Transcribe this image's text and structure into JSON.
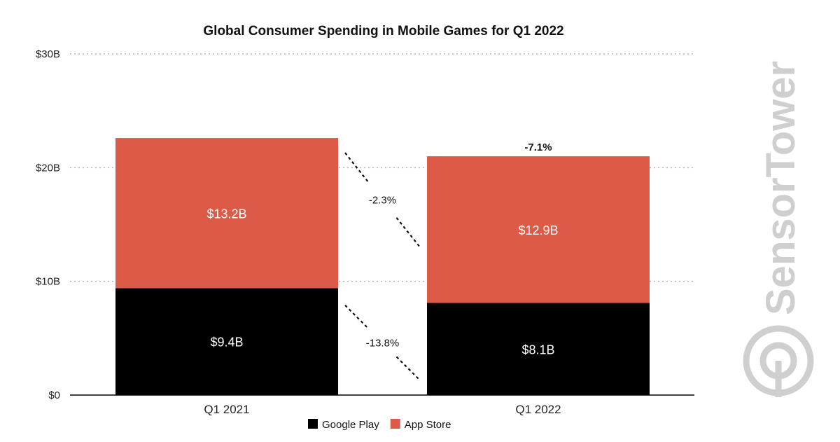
{
  "chart_data": {
    "type": "bar",
    "stacked": true,
    "title": "Global Consumer Spending in Mobile Games for Q1 2022",
    "categories": [
      "Q1 2021",
      "Q1 2022"
    ],
    "series": [
      {
        "name": "Google Play",
        "values": [
          9.4,
          8.1
        ],
        "labels": [
          "$9.4B",
          "$8.1B"
        ],
        "color": "#000000"
      },
      {
        "name": "App Store",
        "values": [
          13.2,
          12.9
        ],
        "labels": [
          "$13.2B",
          "$12.9B"
        ],
        "color": "#dc5a47"
      }
    ],
    "ylim": [
      0,
      30
    ],
    "yticks": [
      {
        "value": 0,
        "label": "$0"
      },
      {
        "value": 10,
        "label": "$10B"
      },
      {
        "value": 20,
        "label": "$20B"
      },
      {
        "value": 30,
        "label": "$30B"
      }
    ],
    "grid": true,
    "legend_position": "bottom",
    "annotations": {
      "google_play_change": "-13.8%",
      "app_store_change": "-2.3%",
      "total_change": "-7.1%"
    }
  },
  "watermark": "SensorTower"
}
